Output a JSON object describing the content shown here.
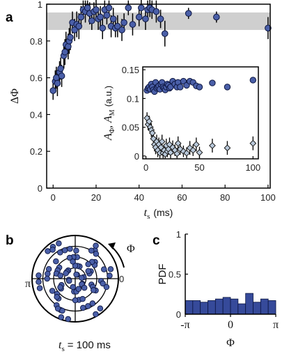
{
  "panel_letters": {
    "a": "a",
    "b": "b",
    "c": "c"
  },
  "colors": {
    "marker": "#4a5fa8",
    "marker_edge": "#0d1640",
    "diamond": "#b8c8da",
    "band": "#cfcfcf",
    "bar": "#364a9a",
    "axis": "#000000"
  },
  "polar": {
    "phi_label": "Φ",
    "zero_label": "0",
    "pi_label": "π",
    "ts_caption": "= 100 ms",
    "ts_symbol": "t",
    "ts_sub": "s"
  },
  "chart_data": [
    {
      "type": "scatter",
      "panel": "a",
      "ylabel": "ΔΦ",
      "xlabel": "t",
      "xlabel_sub": "s",
      "xlabel_unit": "(ms)",
      "xlim": [
        -3,
        101
      ],
      "ylim": [
        0,
        1
      ],
      "xticks": [
        0,
        20,
        40,
        60,
        80,
        100
      ],
      "yticks": [
        0,
        0.2,
        0.4,
        0.6,
        0.8,
        1
      ],
      "ytick_labels": [
        "0",
        "0.2",
        "0.4",
        "0.6",
        "0.8",
        "1"
      ],
      "band": {
        "y_low": 0.86,
        "y_high": 0.955
      },
      "series": [
        {
          "x": [
            0,
            1,
            1.5,
            2,
            3,
            3.5,
            4,
            5,
            5.5,
            6,
            7,
            7.5,
            8,
            9,
            10,
            11,
            12,
            13,
            14,
            15,
            16,
            17,
            18,
            19,
            20,
            21,
            22,
            23,
            24,
            25,
            26,
            27,
            28,
            29,
            30,
            32,
            33,
            35,
            37,
            40,
            41,
            43,
            44,
            45,
            46,
            48,
            50,
            52,
            63,
            76,
            100
          ],
          "y": [
            0.53,
            0.58,
            0.6,
            0.57,
            0.63,
            0.65,
            0.61,
            0.72,
            0.74,
            0.78,
            0.77,
            0.8,
            0.82,
            0.9,
            0.86,
            0.89,
            0.88,
            0.93,
            0.97,
            0.96,
            0.98,
            0.95,
            0.91,
            0.96,
            0.97,
            0.92,
            0.93,
            0.87,
            0.97,
            0.94,
            0.98,
            0.88,
            0.92,
            0.87,
            0.88,
            0.86,
            0.9,
            0.98,
            0.89,
            0.93,
            0.98,
            0.92,
            0.97,
            0.98,
            0.97,
            0.96,
            0.92,
            0.84,
            0.95,
            0.93,
            0.87
          ],
          "err": [
            0.05,
            0.06,
            0.06,
            0.07,
            0.06,
            0.06,
            0.06,
            0.07,
            0.07,
            0.07,
            0.07,
            0.07,
            0.07,
            0.06,
            0.06,
            0.07,
            0.07,
            0.06,
            0.05,
            0.06,
            0.04,
            0.06,
            0.05,
            0.05,
            0.06,
            0.06,
            0.06,
            0.06,
            0.05,
            0.05,
            0.04,
            0.06,
            0.06,
            0.05,
            0.06,
            0.06,
            0.05,
            0.04,
            0.06,
            0.05,
            0.05,
            0.06,
            0.05,
            0.05,
            0.05,
            0.06,
            0.05,
            0.07,
            0.03,
            0.03,
            0.06
          ]
        }
      ]
    },
    {
      "type": "scatter",
      "panel": "a-inset",
      "ylabel": "A",
      "ylabel_sub1": "Φ",
      "ylabel_mid": ", A",
      "ylabel_sub2": "M",
      "ylabel_unit": "(a.u.)",
      "xlim": [
        -3,
        105
      ],
      "ylim": [
        -0.005,
        0.155
      ],
      "xticks": [
        0,
        50,
        100
      ],
      "yticks": [
        0,
        0.05,
        0.1,
        0.15
      ],
      "ytick_labels": [
        "0",
        "0.05",
        "0.1",
        "0.15"
      ],
      "series": [
        {
          "marker": "circle",
          "x": [
            1,
            2,
            3,
            4,
            5,
            6,
            7,
            8,
            9,
            10,
            11,
            12,
            13,
            14,
            15,
            16,
            17,
            18,
            19,
            20,
            21,
            22,
            23,
            25,
            27,
            29,
            30,
            32,
            35,
            38,
            41,
            44,
            47,
            50,
            62,
            76,
            100
          ],
          "y": [
            0.114,
            0.118,
            0.12,
            0.116,
            0.125,
            0.12,
            0.115,
            0.112,
            0.128,
            0.118,
            0.12,
            0.122,
            0.116,
            0.125,
            0.128,
            0.12,
            0.118,
            0.115,
            0.12,
            0.125,
            0.123,
            0.118,
            0.12,
            0.13,
            0.125,
            0.12,
            0.128,
            0.12,
            0.13,
            0.123,
            0.13,
            0.128,
            0.122,
            0.12,
            0.127,
            0.12,
            0.132
          ]
        },
        {
          "marker": "diamond",
          "x": [
            1,
            2,
            3,
            4,
            5,
            6,
            7,
            8,
            9,
            10,
            11,
            12,
            13,
            14,
            15,
            16,
            17,
            18,
            19,
            20,
            21,
            22,
            23,
            25,
            27,
            29,
            30,
            32,
            35,
            38,
            41,
            44,
            47,
            50,
            62,
            76,
            100
          ],
          "y": [
            0.066,
            0.055,
            0.06,
            0.05,
            0.045,
            0.04,
            0.03,
            0.02,
            0.015,
            0.025,
            0.01,
            0.02,
            0.005,
            0.015,
            0.025,
            0.005,
            0.01,
            0.003,
            0.018,
            0.008,
            0.012,
            0.02,
            0.006,
            0.015,
            0.01,
            0.004,
            0.022,
            0.012,
            0.008,
            0.005,
            0.014,
            0.01,
            0.02,
            0.006,
            0.018,
            0.014,
            0.022
          ],
          "err": [
            0.01,
            0.01,
            0.01,
            0.01,
            0.012,
            0.012,
            0.012,
            0.012,
            0.012,
            0.012,
            0.012,
            0.012,
            0.01,
            0.012,
            0.012,
            0.01,
            0.01,
            0.01,
            0.012,
            0.01,
            0.01,
            0.012,
            0.01,
            0.012,
            0.01,
            0.01,
            0.012,
            0.01,
            0.01,
            0.01,
            0.012,
            0.01,
            0.012,
            0.01,
            0.012,
            0.012,
            0.012
          ]
        }
      ]
    },
    {
      "type": "scatter",
      "panel": "b",
      "coordinate_system": "polar",
      "rings": 4,
      "series": [
        {
          "r": [
            0.2,
            0.4,
            0.6,
            0.8,
            0.3,
            0.5,
            0.7,
            0.9,
            0.25,
            0.45,
            0.65,
            0.85,
            0.15,
            0.35,
            0.55,
            0.75,
            0.95,
            0.3,
            0.5,
            0.7,
            0.9,
            0.2,
            0.4,
            0.6,
            0.8,
            0.35,
            0.55,
            0.75,
            0.1,
            0.3,
            0.5,
            0.7,
            0.9,
            0.25,
            0.45,
            0.65,
            0.85,
            0.15,
            0.4,
            0.6,
            0.8,
            0.95,
            0.3,
            0.5,
            0.7,
            0.2,
            0.45,
            0.65,
            0.85,
            0.35,
            0.55,
            0.75,
            0.1,
            0.3,
            0.5,
            0.7,
            0.9,
            0.25,
            0.45,
            0.65,
            0.85,
            0.4,
            0.6,
            0.8,
            0.2,
            0.5,
            0.7,
            0.95,
            0.3,
            0.55,
            0.75,
            0.15,
            0.45,
            0.65,
            0.85,
            0.35,
            0.6,
            0.8,
            0.25,
            0.5,
            0.7,
            0.9,
            0.4,
            0.6
          ],
          "theta_deg": [
            10,
            25,
            40,
            55,
            70,
            85,
            100,
            115,
            130,
            145,
            160,
            175,
            190,
            205,
            220,
            235,
            250,
            265,
            280,
            295,
            310,
            325,
            340,
            355,
            5,
            20,
            35,
            50,
            65,
            80,
            95,
            110,
            125,
            140,
            155,
            170,
            185,
            200,
            215,
            230,
            245,
            260,
            275,
            290,
            305,
            320,
            335,
            350,
            15,
            30,
            45,
            60,
            75,
            90,
            105,
            120,
            135,
            150,
            165,
            180,
            195,
            210,
            225,
            240,
            255,
            270,
            285,
            300,
            315,
            330,
            345,
            8,
            48,
            88,
            128,
            168,
            208,
            248,
            288,
            328,
            18,
            58,
            98,
            138
          ]
        }
      ]
    },
    {
      "type": "bar",
      "panel": "c",
      "ylabel": "PDF",
      "xlabel": "Φ",
      "ylim": [
        0,
        1
      ],
      "yticks": [
        0,
        0.5,
        1
      ],
      "ytick_labels": [
        "0",
        "0.5",
        "1"
      ],
      "xtick_labels": [
        "-π",
        "0",
        "π"
      ],
      "bin_edges": [
        -3.1416,
        -2.618,
        -2.0944,
        -1.5708,
        -1.0472,
        -0.5236,
        0,
        0.5236,
        1.0472,
        1.5708,
        2.0944,
        2.618,
        3.1416
      ],
      "values": [
        0.17,
        0.17,
        0.15,
        0.17,
        0.19,
        0.21,
        0.19,
        0.13,
        0.26,
        0.15,
        0.19,
        0.17
      ]
    }
  ]
}
